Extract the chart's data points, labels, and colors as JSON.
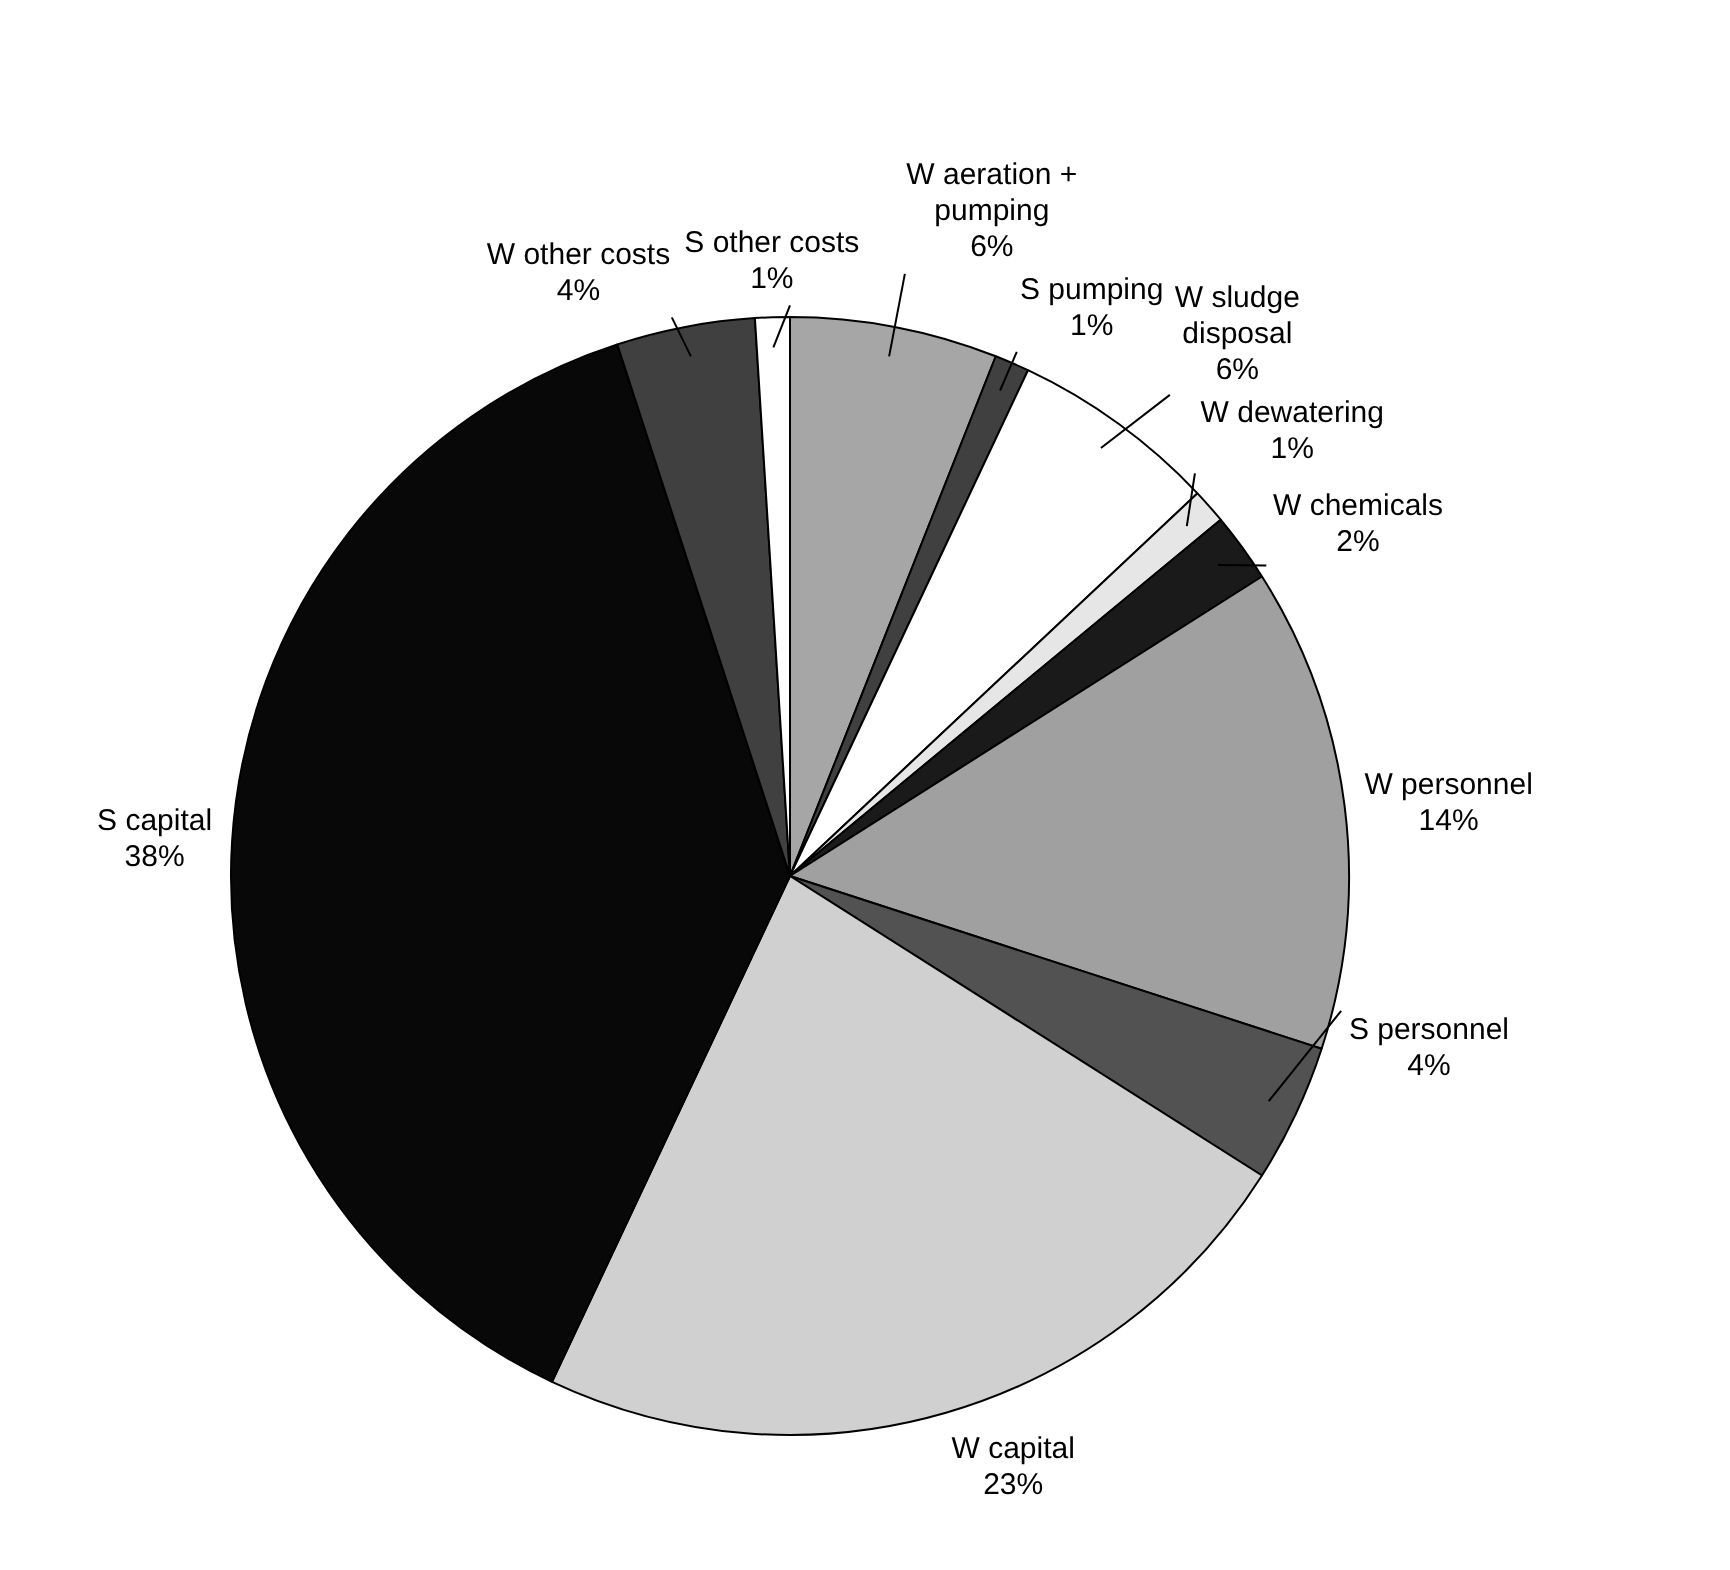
{
  "chart_data": {
    "type": "pie",
    "categories": [
      "W aeration +\npumping",
      "S pumping",
      "W sludge\ndisposal",
      "W dewatering",
      "W chemicals",
      "W personnel",
      "S personnel",
      "W capital",
      "S capital",
      "W other costs",
      "S other costs"
    ],
    "values": [
      6,
      1,
      6,
      1,
      2,
      14,
      4,
      23,
      38,
      4,
      1
    ],
    "value_labels": [
      "6%",
      "1%",
      "6%",
      "1%",
      "2%",
      "14%",
      "4%",
      "23%",
      "38%",
      "4%",
      "1%"
    ],
    "colors": [
      "#a6a6a6",
      "#404040",
      "#ffffff",
      "#e6e6e6",
      "#1a1a1a",
      "#a0a0a0",
      "#525252",
      "#d0d0d0",
      "#080808",
      "#404040",
      "#ffffff"
    ],
    "legend": false
  }
}
